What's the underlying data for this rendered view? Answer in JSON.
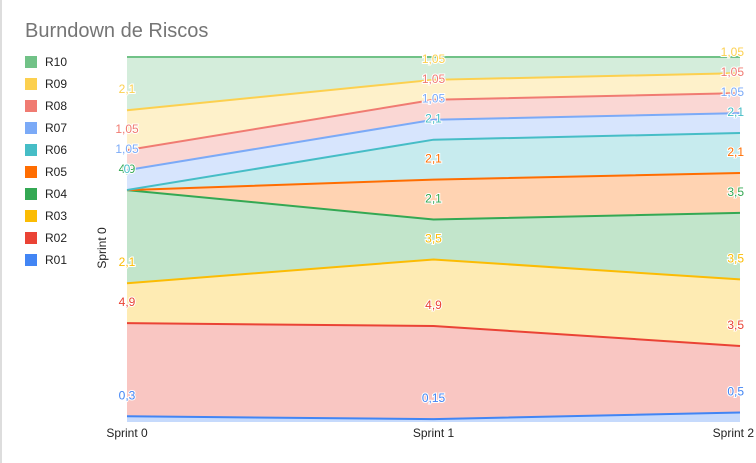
{
  "chart_data": {
    "type": "stacked-area",
    "title": "Burndown de Riscos",
    "y_axis_label": "Sprint 0",
    "categories": [
      "Sprint 0",
      "Sprint 1",
      "Sprint 2"
    ],
    "ylim": [
      0,
      19.2
    ],
    "series": [
      {
        "name": "R01",
        "color": "#4285f4",
        "values": [
          0.3,
          0.15,
          0.5
        ],
        "value_labels": [
          "0,3",
          "0,15",
          "0,5"
        ]
      },
      {
        "name": "R02",
        "color": "#ea4335",
        "values": [
          4.9,
          4.9,
          3.5
        ],
        "value_labels": [
          "4,9",
          "4,9",
          "3,5"
        ]
      },
      {
        "name": "R03",
        "color": "#fbbc04",
        "values": [
          2.1,
          3.5,
          3.5
        ],
        "value_labels": [
          "2,1",
          "3,5",
          "3,5"
        ]
      },
      {
        "name": "R04",
        "color": "#34a853",
        "values": [
          4.9,
          2.1,
          3.5
        ],
        "value_labels": [
          "4,9",
          "2,1",
          "3,5"
        ]
      },
      {
        "name": "R05",
        "color": "#ff6d01",
        "values": [
          0,
          2.1,
          2.1
        ],
        "value_labels": [
          "0",
          "2,1",
          "2,1"
        ]
      },
      {
        "name": "R06",
        "color": "#46bdc6",
        "values": [
          0,
          2.1,
          2.1
        ],
        "value_labels": [
          "0",
          "2,1",
          "2,1"
        ]
      },
      {
        "name": "R07",
        "color": "#7baaf7",
        "values": [
          1.05,
          1.05,
          1.05
        ],
        "value_labels": [
          "1,05",
          "1,05",
          "1,05"
        ]
      },
      {
        "name": "R08",
        "color": "#f07b72",
        "values": [
          1.05,
          1.05,
          1.05
        ],
        "value_labels": [
          "1,05",
          "1,05",
          "1,05"
        ]
      },
      {
        "name": "R09",
        "color": "#fcd04f",
        "values": [
          2.1,
          1.05,
          1.05
        ],
        "value_labels": [
          "2,1",
          "1,05",
          "1,05"
        ]
      },
      {
        "name": "R10",
        "color": "#71c287",
        "values": [
          2.8,
          1.2,
          0.85
        ]
      }
    ]
  }
}
